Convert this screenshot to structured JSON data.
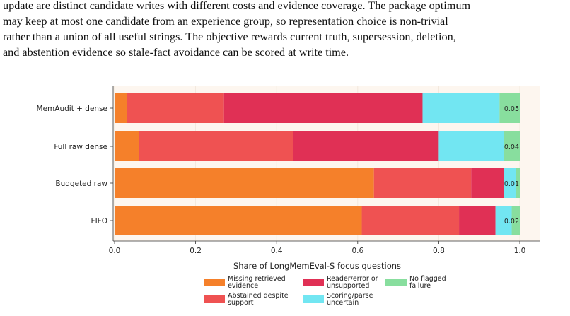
{
  "paragraph": {
    "lines": [
      "update are distinct candidate writes with different costs and evidence coverage. The package optimum",
      "may keep at most one candidate from an experience group, so representation choice is non-trivial",
      "rather than a union of all useful strings. The objective rewards current truth, supersession, deletion,",
      "and abstention evidence so stale-fact avoidance can be scored at write time."
    ]
  },
  "chart_data": {
    "type": "bar",
    "orientation": "horizontal",
    "stacked": true,
    "categories": [
      "MemAudit + dense",
      "Full raw dense",
      "Budgeted raw",
      "FIFO"
    ],
    "series": [
      {
        "name": "Missing retrieved evidence",
        "color": "#f5802a",
        "values": [
          0.03,
          0.06,
          0.64,
          0.61
        ]
      },
      {
        "name": "Abstained despite support",
        "color": "#ef5252",
        "values": [
          0.24,
          0.38,
          0.24,
          0.24
        ]
      },
      {
        "name": "Reader/error or unsupported",
        "color": "#e03055",
        "values": [
          0.49,
          0.36,
          0.08,
          0.09
        ]
      },
      {
        "name": "Scoring/parse uncertain",
        "color": "#72e6f2",
        "values": [
          0.19,
          0.16,
          0.03,
          0.04
        ]
      },
      {
        "name": "No flagged failure",
        "color": "#88de9e",
        "values": [
          0.05,
          0.04,
          0.01,
          0.02
        ]
      }
    ],
    "data_labels": [
      "0.05",
      "0.04",
      "0.01",
      "0.02"
    ],
    "xlabel": "Share of LongMemEval-S focus questions",
    "xlim": [
      0,
      1.05
    ],
    "xticks": [
      "0.0",
      "0.2",
      "0.4",
      "0.6",
      "0.8",
      "1.0"
    ],
    "legend_placement": "bottom",
    "grid": "x",
    "background": "#fdf6ef"
  }
}
